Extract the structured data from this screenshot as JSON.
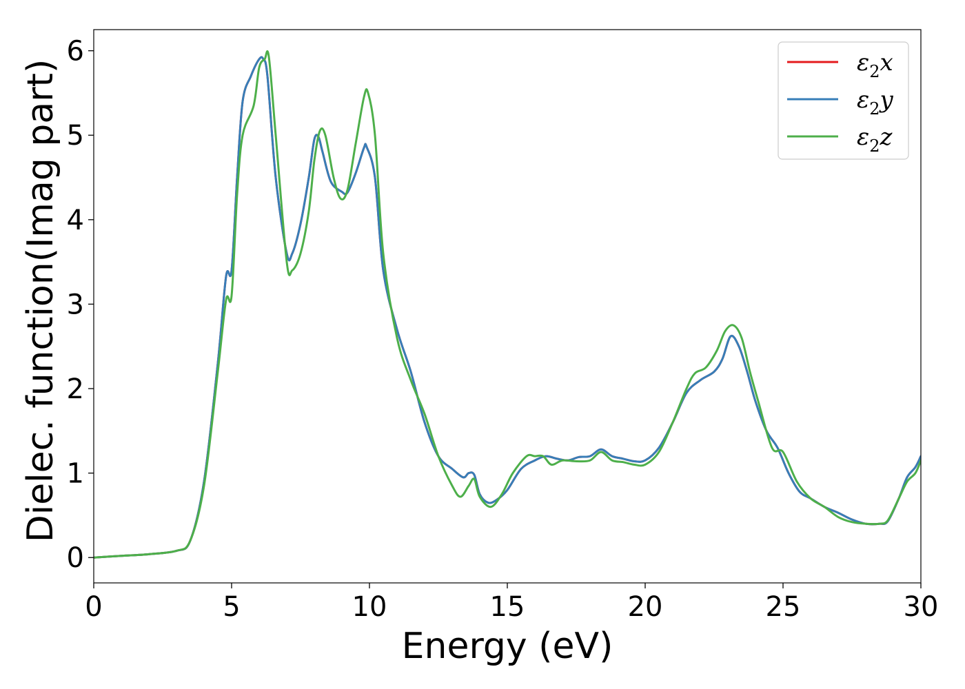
{
  "chart_data": {
    "type": "line",
    "title": "",
    "xlabel": "Energy (eV)",
    "ylabel": "Dielec. function(Imag part)",
    "xlim": [
      0,
      30
    ],
    "ylim": [
      -0.3,
      6.25
    ],
    "xticks": [
      0,
      5,
      10,
      15,
      20,
      25,
      30
    ],
    "yticks": [
      0,
      1,
      2,
      3,
      4,
      5,
      6
    ],
    "grid": false,
    "legend_position": "top-right",
    "series": [
      {
        "name": "ε2x",
        "legend": {
          "base": "ε",
          "sub": "2",
          "var": "x"
        },
        "color": "#e41a1c",
        "x": [
          0,
          1,
          2,
          3,
          3.5,
          4,
          4.5,
          4.8,
          5.0,
          5.2,
          5.4,
          5.7,
          6.0,
          6.15,
          6.3,
          6.6,
          7.0,
          7.2,
          7.5,
          7.8,
          8.0,
          8.15,
          8.3,
          8.6,
          9.0,
          9.2,
          9.5,
          9.8,
          9.9,
          10.2,
          10.5,
          11.0,
          11.5,
          12.0,
          12.5,
          13.0,
          13.4,
          13.6,
          13.8,
          14.0,
          14.3,
          14.6,
          15.0,
          15.5,
          16.0,
          16.4,
          16.8,
          17.2,
          17.6,
          18.0,
          18.4,
          18.8,
          19.2,
          19.6,
          20.0,
          20.5,
          21.0,
          21.5,
          22.0,
          22.5,
          22.8,
          23.1,
          23.4,
          23.7,
          24.0,
          24.4,
          24.8,
          25.2,
          25.6,
          26.0,
          26.5,
          27.0,
          27.5,
          28.0,
          28.5,
          28.8,
          29.2,
          29.5,
          29.8,
          30.0
        ],
        "values": [
          0,
          0.02,
          0.04,
          0.08,
          0.2,
          0.9,
          2.3,
          3.33,
          3.4,
          4.5,
          5.4,
          5.7,
          5.9,
          5.9,
          5.7,
          4.5,
          3.6,
          3.6,
          3.95,
          4.5,
          4.95,
          4.98,
          4.8,
          4.45,
          4.33,
          4.32,
          4.55,
          4.85,
          4.86,
          4.5,
          3.4,
          2.7,
          2.2,
          1.6,
          1.2,
          1.05,
          0.95,
          1.0,
          0.98,
          0.75,
          0.65,
          0.68,
          0.8,
          1.05,
          1.15,
          1.2,
          1.17,
          1.15,
          1.19,
          1.2,
          1.28,
          1.2,
          1.17,
          1.14,
          1.15,
          1.3,
          1.6,
          1.95,
          2.1,
          2.2,
          2.35,
          2.62,
          2.5,
          2.2,
          1.85,
          1.5,
          1.3,
          1.0,
          0.78,
          0.7,
          0.6,
          0.53,
          0.45,
          0.4,
          0.4,
          0.43,
          0.7,
          0.95,
          1.07,
          1.2
        ]
      },
      {
        "name": "ε2y",
        "legend": {
          "base": "ε",
          "sub": "2",
          "var": "y"
        },
        "color": "#377eb8",
        "x": [
          0,
          1,
          2,
          3,
          3.5,
          4,
          4.5,
          4.8,
          5.0,
          5.2,
          5.4,
          5.7,
          6.0,
          6.15,
          6.3,
          6.6,
          7.0,
          7.2,
          7.5,
          7.8,
          8.0,
          8.15,
          8.3,
          8.6,
          9.0,
          9.2,
          9.5,
          9.8,
          9.9,
          10.2,
          10.5,
          11.0,
          11.5,
          12.0,
          12.5,
          13.0,
          13.4,
          13.6,
          13.8,
          14.0,
          14.3,
          14.6,
          15.0,
          15.5,
          16.0,
          16.4,
          16.8,
          17.2,
          17.6,
          18.0,
          18.4,
          18.8,
          19.2,
          19.6,
          20.0,
          20.5,
          21.0,
          21.5,
          22.0,
          22.5,
          22.8,
          23.1,
          23.4,
          23.7,
          24.0,
          24.4,
          24.8,
          25.2,
          25.6,
          26.0,
          26.5,
          27.0,
          27.5,
          28.0,
          28.5,
          28.8,
          29.2,
          29.5,
          29.8,
          30.0
        ],
        "values": [
          0,
          0.02,
          0.04,
          0.08,
          0.2,
          0.9,
          2.3,
          3.33,
          3.4,
          4.5,
          5.4,
          5.7,
          5.9,
          5.9,
          5.7,
          4.5,
          3.6,
          3.6,
          3.95,
          4.5,
          4.95,
          4.98,
          4.8,
          4.45,
          4.33,
          4.32,
          4.55,
          4.85,
          4.86,
          4.5,
          3.4,
          2.7,
          2.2,
          1.6,
          1.2,
          1.05,
          0.95,
          1.0,
          0.98,
          0.75,
          0.65,
          0.68,
          0.8,
          1.05,
          1.15,
          1.2,
          1.17,
          1.15,
          1.19,
          1.2,
          1.28,
          1.2,
          1.17,
          1.14,
          1.15,
          1.3,
          1.6,
          1.95,
          2.1,
          2.2,
          2.35,
          2.62,
          2.5,
          2.2,
          1.85,
          1.5,
          1.3,
          1.0,
          0.78,
          0.7,
          0.6,
          0.53,
          0.45,
          0.4,
          0.4,
          0.43,
          0.7,
          0.95,
          1.07,
          1.2
        ]
      },
      {
        "name": "ε2z",
        "legend": {
          "base": "ε",
          "sub": "2",
          "var": "z"
        },
        "color": "#4daf4a",
        "x": [
          0,
          1,
          2,
          3,
          3.5,
          4,
          4.5,
          4.8,
          5.0,
          5.2,
          5.4,
          5.8,
          6.0,
          6.2,
          6.35,
          6.6,
          7.0,
          7.2,
          7.5,
          7.8,
          8.0,
          8.2,
          8.4,
          8.7,
          8.95,
          9.2,
          9.5,
          9.8,
          9.95,
          10.2,
          10.5,
          11.0,
          11.5,
          12.0,
          12.5,
          13.0,
          13.3,
          13.6,
          13.8,
          14.0,
          14.4,
          14.8,
          15.2,
          15.7,
          16.0,
          16.3,
          16.6,
          17.0,
          17.5,
          18.0,
          18.4,
          18.8,
          19.2,
          19.6,
          20.0,
          20.5,
          21.0,
          21.5,
          21.8,
          22.2,
          22.6,
          22.9,
          23.2,
          23.5,
          23.8,
          24.1,
          24.6,
          25.0,
          25.5,
          26.0,
          26.5,
          27.0,
          27.5,
          28.0,
          28.5,
          28.8,
          29.2,
          29.5,
          29.8,
          30.0
        ],
        "values": [
          0,
          0.02,
          0.04,
          0.08,
          0.2,
          0.85,
          2.2,
          3.05,
          3.1,
          4.3,
          5.0,
          5.35,
          5.8,
          5.9,
          5.93,
          5.0,
          3.5,
          3.4,
          3.6,
          4.1,
          4.7,
          5.05,
          5.0,
          4.5,
          4.25,
          4.35,
          4.9,
          5.45,
          5.5,
          5.0,
          3.6,
          2.6,
          2.1,
          1.7,
          1.2,
          0.85,
          0.72,
          0.85,
          0.93,
          0.72,
          0.6,
          0.75,
          1.0,
          1.2,
          1.2,
          1.2,
          1.1,
          1.15,
          1.14,
          1.15,
          1.25,
          1.15,
          1.13,
          1.1,
          1.1,
          1.25,
          1.6,
          2.0,
          2.18,
          2.25,
          2.45,
          2.68,
          2.75,
          2.6,
          2.2,
          1.85,
          1.3,
          1.25,
          0.9,
          0.7,
          0.6,
          0.48,
          0.42,
          0.4,
          0.4,
          0.44,
          0.7,
          0.9,
          1.0,
          1.15
        ]
      }
    ]
  }
}
